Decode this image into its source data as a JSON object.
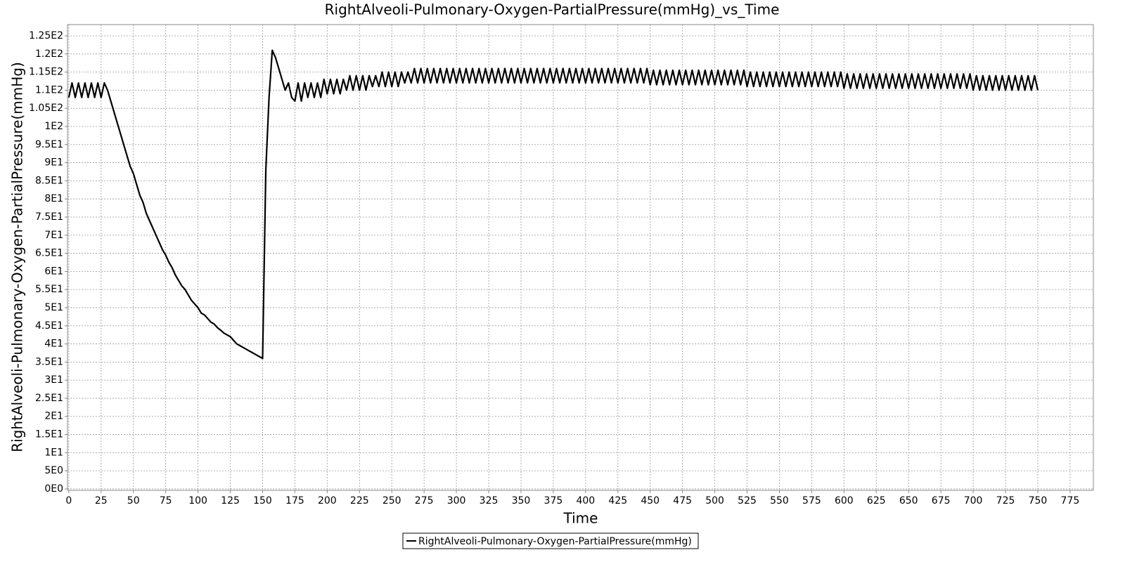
{
  "chart_data": {
    "type": "line",
    "title": "RightAlveoli-Pulmonary-Oxygen-PartialPressure(mmHg)_vs_Time",
    "xlabel": "Time",
    "ylabel": "RightAlveoli-Pulmonary-Oxygen-PartialPressure(mmHg)",
    "xlim": [
      -1,
      793
    ],
    "ylim": [
      -0.4,
      128.1
    ],
    "xticks": [
      0,
      25,
      50,
      75,
      100,
      125,
      150,
      175,
      200,
      225,
      250,
      275,
      300,
      325,
      350,
      375,
      400,
      425,
      450,
      475,
      500,
      525,
      550,
      575,
      600,
      625,
      650,
      675,
      700,
      725,
      750,
      775
    ],
    "yticks": [
      {
        "value": 0,
        "label": "0E0"
      },
      {
        "value": 5,
        "label": "5E0"
      },
      {
        "value": 10,
        "label": "1E1"
      },
      {
        "value": 15,
        "label": "1.5E1"
      },
      {
        "value": 20,
        "label": "2E1"
      },
      {
        "value": 25,
        "label": "2.5E1"
      },
      {
        "value": 30,
        "label": "3E1"
      },
      {
        "value": 35,
        "label": "3.5E1"
      },
      {
        "value": 40,
        "label": "4E1"
      },
      {
        "value": 45,
        "label": "4.5E1"
      },
      {
        "value": 50,
        "label": "5E1"
      },
      {
        "value": 55,
        "label": "5.5E1"
      },
      {
        "value": 60,
        "label": "6E1"
      },
      {
        "value": 65,
        "label": "6.5E1"
      },
      {
        "value": 70,
        "label": "7E1"
      },
      {
        "value": 75,
        "label": "7.5E1"
      },
      {
        "value": 80,
        "label": "8E1"
      },
      {
        "value": 85,
        "label": "8.5E1"
      },
      {
        "value": 90,
        "label": "9E1"
      },
      {
        "value": 95,
        "label": "9.5E1"
      },
      {
        "value": 100,
        "label": "1E2"
      },
      {
        "value": 105,
        "label": "1.05E2"
      },
      {
        "value": 110,
        "label": "1.1E2"
      },
      {
        "value": 115,
        "label": "1.15E2"
      },
      {
        "value": 120,
        "label": "1.2E2"
      },
      {
        "value": 125,
        "label": "1.25E2"
      }
    ],
    "grid": true,
    "x": [
      0,
      2.5,
      5,
      7.5,
      10,
      12.5,
      15,
      17.5,
      20,
      22.5,
      25,
      27.5,
      30,
      32.5,
      35,
      37.5,
      40,
      42.5,
      45,
      47.5,
      50,
      52.5,
      55,
      57.5,
      60,
      62.5,
      65,
      67.5,
      70,
      72.5,
      75,
      77.5,
      80,
      82.5,
      85,
      87.5,
      90,
      92.5,
      95,
      97.5,
      100,
      102.5,
      105,
      107.5,
      110,
      112.5,
      115,
      117.5,
      120,
      122.5,
      125,
      127.5,
      130,
      132.5,
      135,
      137.5,
      140,
      142.5,
      145,
      147.5,
      150,
      152.5,
      155,
      157.5,
      160,
      162.5,
      165,
      167.5,
      170,
      172.5,
      175,
      177.5,
      180,
      182.5,
      185,
      187.5,
      190,
      192.5,
      195,
      197.5,
      200,
      202.5,
      205,
      207.5,
      210,
      212.5,
      215,
      217.5,
      220,
      222.5,
      225,
      227.5,
      230,
      232.5,
      235,
      237.5,
      240,
      242.5,
      245,
      247.5,
      250,
      252.5,
      255,
      257.5,
      260,
      262.5,
      265,
      267.5,
      270,
      272.5,
      275,
      277.5,
      280,
      282.5,
      285,
      287.5,
      290,
      292.5,
      295,
      297.5,
      300,
      302.5,
      305,
      307.5,
      310,
      312.5,
      315,
      317.5,
      320,
      322.5,
      325,
      327.5,
      330,
      332.5,
      335,
      337.5,
      340,
      342.5,
      345,
      347.5,
      350,
      352.5,
      355,
      357.5,
      360,
      362.5,
      365,
      367.5,
      370,
      372.5,
      375,
      377.5,
      380,
      382.5,
      385,
      387.5,
      390,
      392.5,
      395,
      397.5,
      400,
      402.5,
      405,
      407.5,
      410,
      412.5,
      415,
      417.5,
      420,
      422.5,
      425,
      427.5,
      430,
      432.5,
      435,
      437.5,
      440,
      442.5,
      445,
      447.5,
      450,
      452.5,
      455,
      457.5,
      460,
      462.5,
      465,
      467.5,
      470,
      472.5,
      475,
      477.5,
      480,
      482.5,
      485,
      487.5,
      490,
      492.5,
      495,
      497.5,
      500,
      502.5,
      505,
      507.5,
      510,
      512.5,
      515,
      517.5,
      520,
      522.5,
      525,
      527.5,
      530,
      532.5,
      535,
      537.5,
      540,
      542.5,
      545,
      547.5,
      550,
      552.5,
      555,
      557.5,
      560,
      562.5,
      565,
      567.5,
      570,
      572.5,
      575,
      577.5,
      580,
      582.5,
      585,
      587.5,
      590,
      592.5,
      595,
      597.5,
      600,
      602.5,
      605,
      607.5,
      610,
      612.5,
      615,
      617.5,
      620,
      622.5,
      625,
      627.5,
      630,
      632.5,
      635,
      637.5,
      640,
      642.5,
      645,
      647.5,
      650,
      652.5,
      655,
      657.5,
      660,
      662.5,
      665,
      667.5,
      670,
      672.5,
      675,
      677.5,
      680,
      682.5,
      685,
      687.5,
      690,
      692.5,
      695,
      697.5,
      700,
      702.5,
      705,
      707.5,
      710,
      712.5,
      715,
      717.5,
      720,
      722.5,
      725,
      727.5,
      730,
      732.5,
      735,
      737.5,
      740,
      742.5,
      745,
      747.5,
      750
    ],
    "series": [
      {
        "name": "RightAlveoli-Pulmonary-Oxygen-PartialPressure(mmHg)",
        "color": "#000000",
        "values": [
          108,
          112,
          108,
          112,
          108,
          112,
          108,
          112,
          108,
          112,
          108,
          112,
          110,
          107,
          104,
          101,
          98,
          95,
          92,
          89,
          87,
          84,
          81,
          79,
          76,
          74,
          72,
          70,
          68,
          66,
          64.5,
          62.5,
          61,
          59,
          57.5,
          56,
          55,
          53.5,
          52,
          51,
          50,
          48.5,
          48,
          47,
          46,
          45.5,
          44.5,
          43.8,
          43,
          42.5,
          42,
          41,
          40,
          39.5,
          39,
          38.5,
          38,
          37.5,
          37,
          36.5,
          36,
          88,
          108,
          121,
          119,
          116,
          113,
          110,
          112,
          108,
          107,
          112,
          107,
          112,
          108,
          112,
          108,
          112,
          108,
          113,
          109,
          113,
          109,
          113,
          109,
          113,
          110,
          114,
          110,
          114,
          110,
          114,
          110,
          114,
          111,
          114,
          111,
          115,
          111,
          115,
          111,
          115,
          111,
          115,
          112,
          115,
          112,
          116,
          112,
          116,
          112,
          116,
          112,
          116,
          112,
          116,
          112,
          116,
          112,
          116,
          112,
          116,
          112,
          116,
          112,
          116,
          112,
          116,
          112,
          116,
          112,
          116,
          112,
          116,
          112,
          116,
          112,
          116,
          112,
          116,
          112,
          116,
          112,
          116,
          112,
          116,
          112,
          116,
          112,
          116,
          112,
          116,
          112,
          116,
          112,
          116,
          112,
          116,
          112,
          116,
          112,
          116,
          112,
          116,
          112,
          116,
          112,
          116,
          112,
          116,
          112,
          116,
          112,
          116,
          112,
          116,
          112,
          116,
          112,
          116,
          111.5,
          115.5,
          111.5,
          115.5,
          111.5,
          115.5,
          111.5,
          115.5,
          111.5,
          115.5,
          111.5,
          115.5,
          111.5,
          115.5,
          111.5,
          115.5,
          111.5,
          115.5,
          111.5,
          115.5,
          111.5,
          115.5,
          111.5,
          115.5,
          111.5,
          115.5,
          111.5,
          115.5,
          111.5,
          115.5,
          111,
          115,
          111,
          115,
          111,
          115,
          111,
          115,
          111,
          115,
          111,
          115,
          111,
          115,
          111,
          115,
          111,
          115,
          111,
          115,
          111,
          115,
          111,
          115,
          111,
          115,
          111,
          115,
          111,
          115,
          110.5,
          114.5,
          110.5,
          114.5,
          110.5,
          114.5,
          110.5,
          114.5,
          110.5,
          114.5,
          110.5,
          114.5,
          110.5,
          114.5,
          110.5,
          114.5,
          110.5,
          114.5,
          110.5,
          114.5,
          110.5,
          114.5,
          110.5,
          114.5,
          110.5,
          114.5,
          110.5,
          114.5,
          110.5,
          114.5,
          110.5,
          114.5,
          110.5,
          114.5,
          110.5,
          114.5,
          110.5,
          114.5,
          110.5,
          114.5,
          110,
          114,
          110,
          114,
          110,
          114,
          110,
          114,
          110,
          114,
          110,
          114,
          110,
          114,
          110,
          114,
          110,
          114,
          110,
          114,
          110
        ]
      }
    ]
  }
}
